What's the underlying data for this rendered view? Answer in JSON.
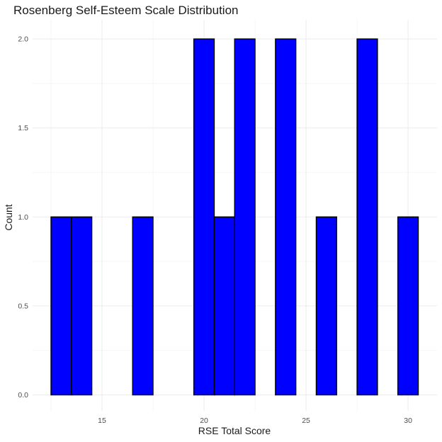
{
  "chart_data": {
    "type": "bar",
    "title": "Rosenberg Self-Esteem Scale Distribution",
    "xlabel": "RSE Total Score",
    "ylabel": "Count",
    "bin_width": 1,
    "x": [
      13,
      14,
      15,
      16,
      17,
      18,
      19,
      20,
      21,
      22,
      23,
      24,
      25,
      26,
      27,
      28,
      29,
      30
    ],
    "values": [
      1,
      1,
      0,
      0,
      1,
      0,
      0,
      2,
      1,
      2,
      0,
      2,
      0,
      1,
      0,
      2,
      0,
      1
    ],
    "xlim": [
      12.5,
      30.5
    ],
    "ylim": [
      0,
      2
    ],
    "x_ticks": [
      15,
      20,
      25,
      30
    ],
    "y_ticks": [
      0,
      0.5,
      1,
      1.5,
      2
    ],
    "y_tick_labels": [
      "0.0",
      "0.5",
      "1.0",
      "1.5",
      "2.0"
    ],
    "grid": true,
    "bar_fill": "#0000ff",
    "bar_outline": "#000000"
  }
}
